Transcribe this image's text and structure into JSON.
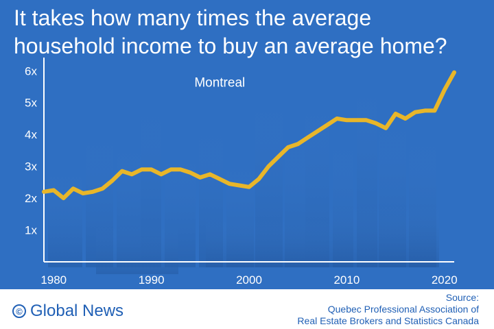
{
  "title_lines": [
    "It takes how many times the average",
    "household income to buy an average home?"
  ],
  "footer": {
    "brand_symbol": "©",
    "brand": "Global News",
    "source_lines": [
      "Source:",
      "Quebec Professional Association of",
      "Real Estate Brokers and Statistics Canada"
    ]
  },
  "colors": {
    "background": "#2f6fc2",
    "line": "#e8b62a",
    "text": "#ffffff",
    "footer_text": "#1f5fb5"
  },
  "chart_data": {
    "type": "line",
    "title": "It takes how many times the average household income to buy an average home?",
    "xlabel": "",
    "ylabel": "",
    "grid": false,
    "xlim": [
      1979,
      2021
    ],
    "ylim": [
      0,
      6.2
    ],
    "xticks": [
      1980,
      1990,
      2000,
      2010,
      2020
    ],
    "yticks": [
      1,
      2,
      3,
      4,
      5,
      6
    ],
    "ytick_labels": [
      "1x",
      "2x",
      "3x",
      "4x",
      "5x",
      "6x"
    ],
    "series": [
      {
        "name": "Montreal",
        "x": [
          1979,
          1980,
          1981,
          1982,
          1983,
          1984,
          1985,
          1986,
          1987,
          1988,
          1989,
          1990,
          1991,
          1992,
          1993,
          1994,
          1995,
          1996,
          1997,
          1998,
          1999,
          2000,
          2001,
          2002,
          2003,
          2004,
          2005,
          2006,
          2007,
          2008,
          2009,
          2010,
          2011,
          2012,
          2013,
          2014,
          2015,
          2016,
          2017,
          2018,
          2019,
          2020,
          2021
        ],
        "y": [
          2.2,
          2.25,
          2.0,
          2.3,
          2.15,
          2.2,
          2.3,
          2.55,
          2.85,
          2.75,
          2.9,
          2.9,
          2.75,
          2.9,
          2.9,
          2.8,
          2.65,
          2.75,
          2.6,
          2.45,
          2.4,
          2.35,
          2.6,
          3.0,
          3.3,
          3.6,
          3.7,
          3.9,
          4.1,
          4.3,
          4.5,
          4.45,
          4.45,
          4.45,
          4.35,
          4.2,
          4.65,
          4.5,
          4.7,
          4.75,
          4.75,
          5.4,
          5.95
        ]
      }
    ],
    "annotation": "Montreal"
  }
}
